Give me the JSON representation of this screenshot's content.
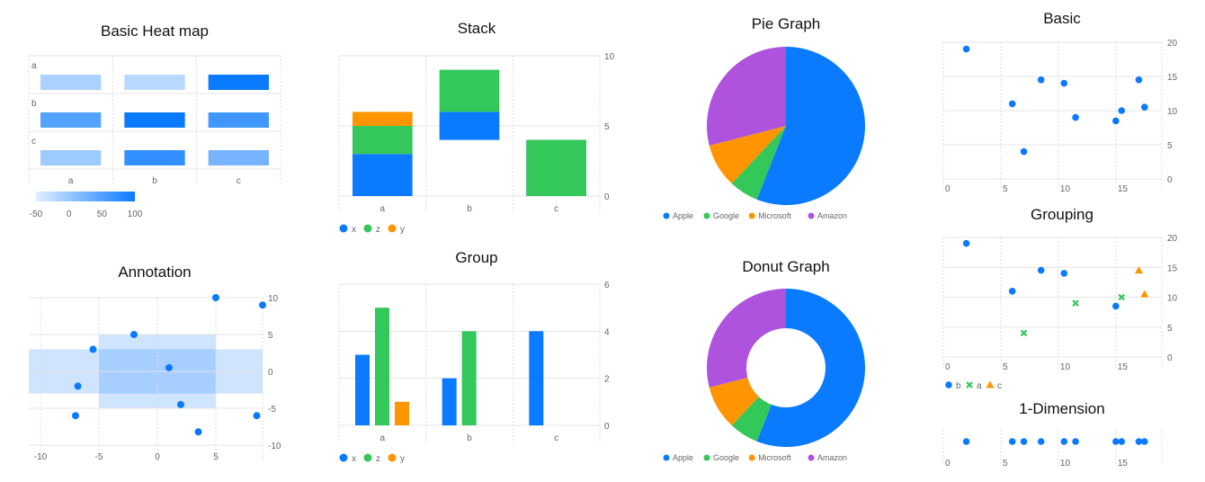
{
  "colors": {
    "blue": "#0a7aff",
    "green": "#34c759",
    "orange": "#ff9500",
    "purple": "#af52de"
  },
  "charts": {
    "heatmap": {
      "type": "heatmap",
      "title": "Basic Heat map",
      "x_categories": [
        "a",
        "b",
        "c"
      ],
      "y_categories": [
        "a",
        "b",
        "c"
      ],
      "values": [
        [
          -20,
          -30,
          100
        ],
        [
          45,
          100,
          60
        ],
        [
          -10,
          70,
          20
        ]
      ],
      "color_scale": {
        "min": -50,
        "max": 100,
        "ticks": [
          "-50",
          "0",
          "50",
          "100"
        ]
      }
    },
    "stack": {
      "type": "bar",
      "stacked": true,
      "title": "Stack",
      "categories": [
        "a",
        "b",
        "c"
      ],
      "series": [
        {
          "name": "x",
          "segments": [
            [
              0,
              3
            ],
            [
              4,
              6
            ],
            [
              0,
              4
            ]
          ]
        },
        {
          "name": "z",
          "segments": [
            [
              3,
              5
            ],
            [
              6,
              9
            ],
            [
              0,
              4
            ]
          ]
        },
        {
          "name": "y",
          "segments": [
            [
              5,
              6
            ]
          ]
        }
      ],
      "ylim": [
        0,
        10
      ],
      "yticks": [
        "0",
        "5",
        "10"
      ]
    },
    "group": {
      "type": "bar",
      "grouped": true,
      "title": "Group",
      "categories": [
        "a",
        "b",
        "c"
      ],
      "series": [
        {
          "name": "x",
          "values": [
            3,
            2,
            4
          ]
        },
        {
          "name": "z",
          "values": [
            5,
            4,
            null
          ]
        },
        {
          "name": "y",
          "values": [
            1,
            null,
            null
          ]
        }
      ],
      "ylim": [
        0,
        6
      ],
      "yticks": [
        "0",
        "2",
        "4",
        "6"
      ]
    },
    "pie": {
      "type": "pie",
      "title": "Pie Graph",
      "labels": [
        "Apple",
        "Google",
        "Microsoft",
        "Amazon"
      ],
      "values": [
        56,
        6,
        9,
        29
      ]
    },
    "donut": {
      "type": "pie",
      "donut": true,
      "title": "Donut Graph",
      "labels": [
        "Apple",
        "Google",
        "Microsoft",
        "Amazon"
      ],
      "values": [
        56,
        6,
        9,
        29
      ]
    },
    "annotation": {
      "type": "scatter",
      "title": "Annotation",
      "points": [
        [
          -6.8,
          -2
        ],
        [
          -7,
          -6
        ],
        [
          -5.5,
          3
        ],
        [
          -2,
          5
        ],
        [
          1,
          0.5
        ],
        [
          2,
          -4.5
        ],
        [
          3.5,
          -8.2
        ],
        [
          5,
          10
        ],
        [
          8.5,
          -6
        ],
        [
          9,
          9
        ]
      ],
      "xlim": [
        -11,
        9
      ],
      "ylim": [
        -10,
        10
      ],
      "xticks": [
        "-10",
        "-5",
        "0",
        "5"
      ],
      "yticks": [
        "10",
        "5",
        "0",
        "-5",
        "-10"
      ],
      "bands": [
        {
          "axis": "y",
          "from": -3,
          "to": 3
        },
        {
          "axis": "x",
          "from": -5,
          "to": 5,
          "y_from": -5,
          "y_to": 5
        }
      ]
    },
    "basic": {
      "type": "scatter",
      "title": "Basic",
      "points": [
        [
          2,
          19
        ],
        [
          6,
          11
        ],
        [
          7,
          4
        ],
        [
          8.5,
          14.5
        ],
        [
          10.5,
          14
        ],
        [
          11.5,
          9
        ],
        [
          15,
          8.5
        ],
        [
          15.5,
          10
        ],
        [
          17,
          14.5
        ],
        [
          17.5,
          10.5
        ]
      ],
      "xlim": [
        0,
        19
      ],
      "ylim": [
        0,
        20
      ],
      "xticks": [
        "0",
        "5",
        "10",
        "15"
      ],
      "yticks": [
        "0",
        "5",
        "10",
        "15",
        "20"
      ]
    },
    "grouping": {
      "type": "scatter",
      "title": "Grouping",
      "series": [
        {
          "name": "b",
          "marker": "circle",
          "points": [
            [
              2,
              19
            ],
            [
              6,
              11
            ],
            [
              8.5,
              14.5
            ],
            [
              10.5,
              14
            ],
            [
              15,
              8.5
            ]
          ]
        },
        {
          "name": "a",
          "marker": "cross",
          "points": [
            [
              7,
              4
            ],
            [
              11.5,
              9
            ],
            [
              15.5,
              10
            ]
          ]
        },
        {
          "name": "c",
          "marker": "triangle",
          "points": [
            [
              17,
              14.5
            ],
            [
              17.5,
              10.5
            ]
          ]
        }
      ],
      "xlim": [
        0,
        19
      ],
      "ylim": [
        0,
        20
      ],
      "xticks": [
        "0",
        "5",
        "10",
        "15"
      ],
      "yticks": [
        "0",
        "5",
        "10",
        "15",
        "20"
      ]
    },
    "one_dim": {
      "type": "scatter",
      "title": "1-Dimension",
      "values": [
        2,
        6,
        7,
        8.5,
        10.5,
        11.5,
        15,
        15.5,
        17,
        17.5
      ],
      "xlim": [
        0,
        19
      ],
      "xticks": [
        "0",
        "5",
        "10",
        "15"
      ]
    }
  }
}
